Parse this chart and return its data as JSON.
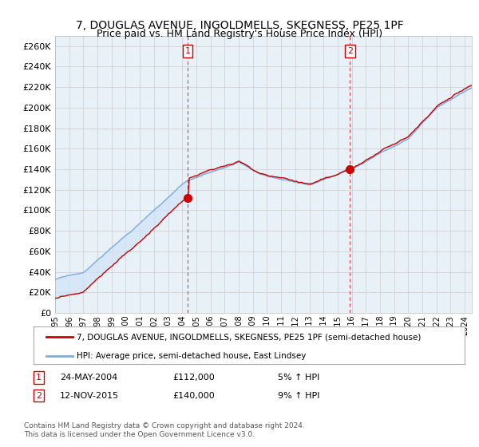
{
  "title": "7, DOUGLAS AVENUE, INGOLDMELLS, SKEGNESS, PE25 1PF",
  "subtitle": "Price paid vs. HM Land Registry's House Price Index (HPI)",
  "ylabel_ticks": [
    0,
    20000,
    40000,
    60000,
    80000,
    100000,
    120000,
    140000,
    160000,
    180000,
    200000,
    220000,
    240000,
    260000
  ],
  "ylim": [
    0,
    270000
  ],
  "red_line_label": "7, DOUGLAS AVENUE, INGOLDMELLS, SKEGNESS, PE25 1PF (semi-detached house)",
  "blue_line_label": "HPI: Average price, semi-detached house, East Lindsey",
  "sale1_year": 2004.39,
  "sale1_price": 112000,
  "sale2_year": 2015.87,
  "sale2_price": 140000,
  "sale1_pct": "5% ↑ HPI",
  "sale2_pct": "9% ↑ HPI",
  "footer": "Contains HM Land Registry data © Crown copyright and database right 2024.\nThis data is licensed under the Open Government Licence v3.0.",
  "red_color": "#cc0000",
  "blue_color": "#7aace0",
  "fill_color": "#d0e4f7",
  "grid_color": "#cccccc",
  "plot_bg": "#e8f0f8",
  "bg_color": "#ffffff",
  "title_fontsize": 10,
  "legend_fontsize": 7.5
}
